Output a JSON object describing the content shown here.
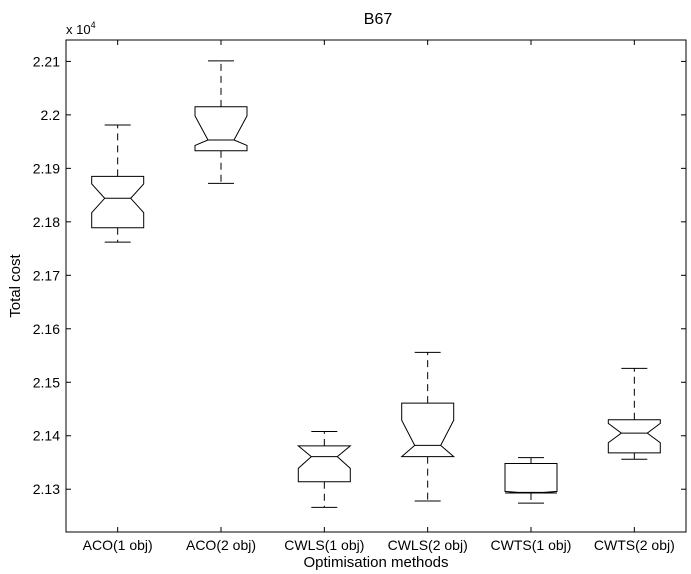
{
  "chart_data": {
    "type": "box",
    "title": "B67",
    "xlabel": "Optimisation methods",
    "ylabel": "Total cost",
    "y_multiplier": "x 10",
    "y_multiplier_exponent": "4",
    "ylim": [
      2.122,
      2.214
    ],
    "yticks": [
      2.13,
      2.14,
      2.15,
      2.16,
      2.17,
      2.18,
      2.19,
      2.2,
      2.21
    ],
    "ytick_labels": [
      "2.13",
      "2.14",
      "2.15",
      "2.16",
      "2.17",
      "2.18",
      "2.19",
      "2.2",
      "2.21"
    ],
    "grid": false,
    "notched": true,
    "categories": [
      "ACO(1 obj)",
      "ACO(2 obj)",
      "CWLS(1 obj)",
      "CWLS(2 obj)",
      "CWTS(1 obj)",
      "CWTS(2 obj)"
    ],
    "boxes": [
      {
        "whisker_low": 2.1762,
        "q1": 2.1789,
        "median": 2.1844,
        "q3": 2.1885,
        "whisker_high": 2.1981,
        "notch_low": 2.1817,
        "notch_high": 2.1871
      },
      {
        "whisker_low": 2.1872,
        "q1": 2.1933,
        "median": 2.1953,
        "q3": 2.2015,
        "whisker_high": 2.2101,
        "notch_low": 2.1943,
        "notch_high": 2.1998
      },
      {
        "whisker_low": 2.1266,
        "q1": 2.1314,
        "median": 2.1361,
        "q3": 2.1381,
        "whisker_high": 2.1408,
        "notch_low": 2.1339,
        "notch_high": 2.1381
      },
      {
        "whisker_low": 2.1278,
        "q1": 2.1361,
        "median": 2.1382,
        "q3": 2.1461,
        "whisker_high": 2.1556,
        "notch_low": 2.1361,
        "notch_high": 2.1429
      },
      {
        "whisker_low": 2.1274,
        "q1": 2.1293,
        "median": 2.1294,
        "q3": 2.1348,
        "whisker_high": 2.1359,
        "notch_low": 2.129,
        "notch_high": 2.1296
      },
      {
        "whisker_low": 2.1356,
        "q1": 2.1368,
        "median": 2.1405,
        "q3": 2.143,
        "whisker_high": 2.1526,
        "notch_low": 2.1387,
        "notch_high": 2.1423
      }
    ]
  }
}
